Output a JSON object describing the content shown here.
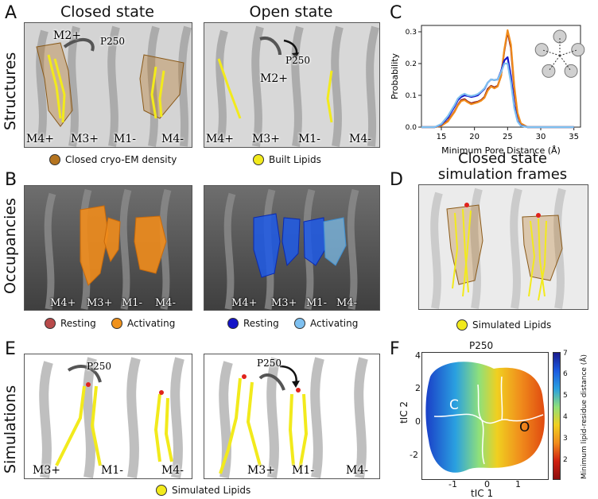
{
  "row_labels": {
    "structures": "Structures",
    "occupancies": "Occupancies",
    "simulations": "Simulations"
  },
  "panels": {
    "A": {
      "letter": "A",
      "closed_title": "Closed state",
      "open_title": "Open state",
      "closed_labels": [
        "M2+",
        "P250",
        "M4+",
        "M3+",
        "M1-",
        "M4-"
      ],
      "open_labels": [
        "P250",
        "M2+",
        "M4+",
        "M3+",
        "M1-",
        "M4-"
      ],
      "legend": [
        {
          "label": "Closed cryo-EM density",
          "color": "#b5741f"
        },
        {
          "label": "Built Lipids",
          "color": "#f2ea1c"
        }
      ]
    },
    "B": {
      "letter": "B",
      "left_labels": [
        "M4+",
        "M3+",
        "M1-",
        "M4-"
      ],
      "right_labels": [
        "M4+",
        "M3+",
        "M1-",
        "M4-"
      ],
      "legend_left": [
        {
          "label": "Resting",
          "color": "#b84a4a"
        },
        {
          "label": "Activating",
          "color": "#f0921c"
        }
      ],
      "legend_right": [
        {
          "label": "Resting",
          "color": "#1414c8"
        },
        {
          "label": "Activating",
          "color": "#7ec0f0"
        }
      ]
    },
    "C": {
      "letter": "C"
    },
    "D": {
      "letter": "D",
      "title_line1": "Closed state",
      "title_line2": "simulation frames",
      "legend": [
        {
          "label": "Simulated Lipids",
          "color": "#f2ea1c"
        }
      ]
    },
    "E": {
      "letter": "E",
      "left_labels": [
        "P250",
        "M3+",
        "M1-",
        "M4-"
      ],
      "right_labels": [
        "P250",
        "M3+",
        "M1-",
        "M4-"
      ],
      "legend": [
        {
          "label": "Simulated Lipids",
          "color": "#f2ea1c"
        }
      ]
    },
    "F": {
      "letter": "F",
      "title": "P250",
      "xlabel": "tIC 1",
      "ylabel": "tIC 2",
      "colorbar_label": "Minimum lipid-residue distance (Å)",
      "region_labels": [
        "C",
        "O"
      ],
      "x_ticks": [
        "-1",
        "0",
        "1"
      ],
      "y_ticks": [
        "4",
        "2",
        "0",
        "-2"
      ],
      "cbar_ticks": [
        "7",
        "6",
        "5",
        "4",
        "3",
        "2"
      ]
    }
  },
  "chart_data": {
    "type": "line",
    "xlabel": "Minimum Pore Distance (Å)",
    "ylabel": "Probability",
    "xlim": [
      12,
      36
    ],
    "ylim": [
      0,
      0.32
    ],
    "x_ticks": [
      15,
      20,
      25,
      30,
      35
    ],
    "y_ticks": [
      0.0,
      0.1,
      0.2,
      0.3
    ],
    "grid": false,
    "x": [
      12,
      13,
      14,
      15,
      16,
      17,
      17.5,
      18,
      18.5,
      19,
      19.5,
      20,
      20.5,
      21,
      21.5,
      22,
      22.5,
      23,
      23.5,
      24,
      24.5,
      25,
      25.5,
      26,
      26.5,
      27,
      28,
      30,
      33,
      35
    ],
    "series": [
      {
        "color": "#8b1a1a",
        "values": [
          0,
          0,
          0,
          0.005,
          0.02,
          0.05,
          0.07,
          0.085,
          0.088,
          0.08,
          0.075,
          0.078,
          0.08,
          0.085,
          0.095,
          0.12,
          0.13,
          0.125,
          0.13,
          0.16,
          0.24,
          0.3,
          0.25,
          0.12,
          0.04,
          0.01,
          0,
          0,
          0,
          0
        ]
      },
      {
        "color": "#f08c1c",
        "values": [
          0,
          0,
          0,
          0.004,
          0.018,
          0.048,
          0.068,
          0.082,
          0.085,
          0.078,
          0.072,
          0.075,
          0.078,
          0.083,
          0.092,
          0.115,
          0.128,
          0.122,
          0.128,
          0.16,
          0.245,
          0.305,
          0.26,
          0.13,
          0.045,
          0.012,
          0,
          0,
          0,
          0
        ]
      },
      {
        "color": "#1414c8",
        "values": [
          0,
          0,
          0,
          0.008,
          0.03,
          0.065,
          0.085,
          0.095,
          0.1,
          0.098,
          0.095,
          0.097,
          0.1,
          0.11,
          0.12,
          0.14,
          0.15,
          0.148,
          0.15,
          0.175,
          0.21,
          0.22,
          0.16,
          0.07,
          0.02,
          0.005,
          0,
          0,
          0,
          0
        ]
      },
      {
        "color": "#7ec0f0",
        "values": [
          0,
          0,
          0,
          0.01,
          0.035,
          0.07,
          0.09,
          0.1,
          0.105,
          0.1,
          0.098,
          0.1,
          0.104,
          0.112,
          0.122,
          0.14,
          0.15,
          0.148,
          0.15,
          0.172,
          0.2,
          0.2,
          0.14,
          0.06,
          0.018,
          0.004,
          0,
          0,
          0,
          0
        ]
      }
    ]
  }
}
